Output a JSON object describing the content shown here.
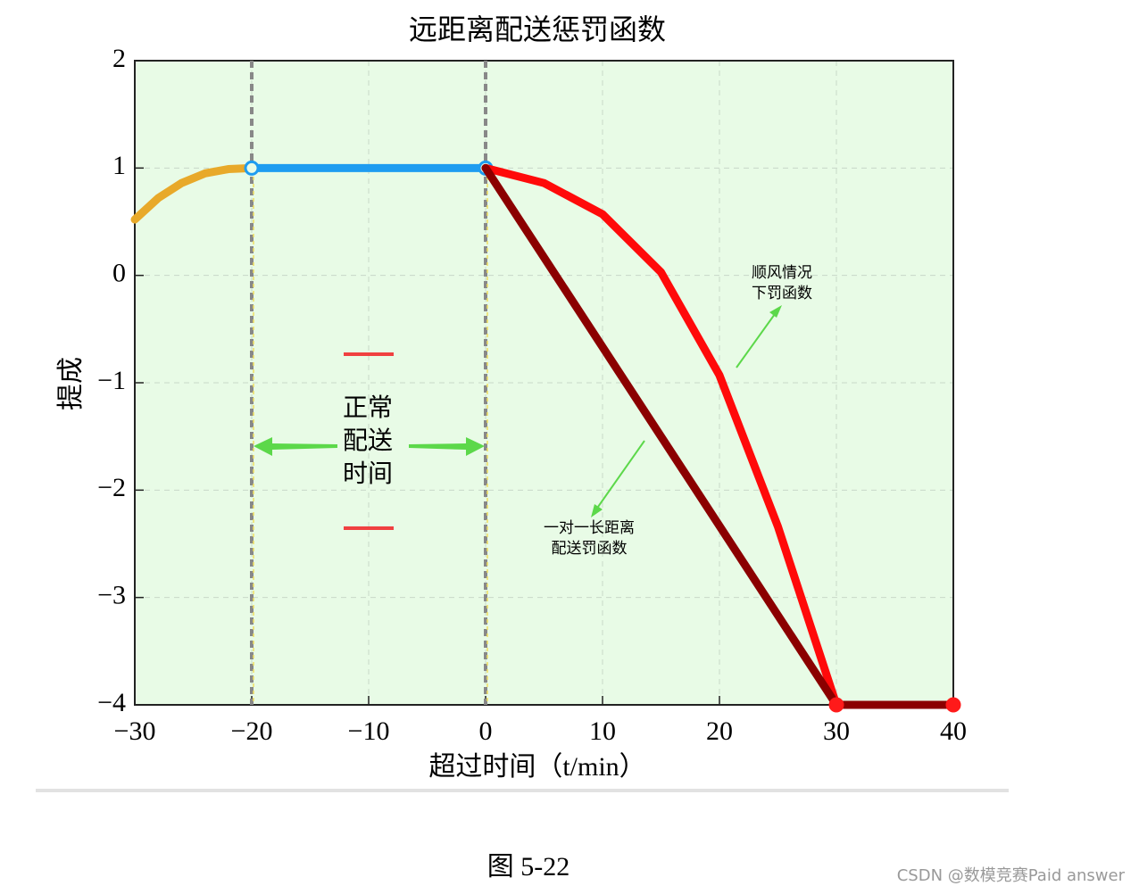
{
  "chart_data": {
    "type": "line",
    "title": "远距离配送惩罚函数",
    "xlabel": "超过时间（t/min）",
    "ylabel": "提成",
    "xlim": [
      -30,
      40
    ],
    "ylim": [
      -4,
      2
    ],
    "xticks": [
      {
        "value": -30,
        "label": "−30"
      },
      {
        "value": -20,
        "label": "−20"
      },
      {
        "value": -10,
        "label": "−10"
      },
      0,
      10,
      20,
      30,
      40
    ],
    "yticks": [
      2,
      1,
      0,
      {
        "value": -1,
        "label": "−1"
      },
      {
        "value": -2,
        "label": "−2"
      },
      {
        "value": -3,
        "label": "−3"
      },
      {
        "value": -4,
        "label": "−4"
      }
    ],
    "grid": true,
    "vlines": [
      -20,
      0
    ],
    "series": [
      {
        "color": "#e8a92a",
        "x": [
          -30,
          -28,
          -26,
          -24,
          -22,
          -20
        ],
        "values": [
          0.52,
          0.72,
          0.86,
          0.95,
          0.99,
          1
        ]
      },
      {
        "color": "#1e9cf0",
        "x": [
          -20,
          0
        ],
        "values": [
          1,
          1
        ],
        "markers": true
      },
      {
        "color": "#ff0a0a",
        "x": [
          0,
          5,
          10,
          15,
          20,
          25,
          30
        ],
        "values": [
          1,
          0.86,
          0.57,
          0.03,
          -0.93,
          -2.34,
          -4
        ]
      },
      {
        "color": "#8b0000",
        "x": [
          0,
          30
        ],
        "values": [
          1,
          -4
        ]
      },
      {
        "color": "#8b0000",
        "x": [
          30,
          40
        ],
        "values": [
          -4,
          -4
        ],
        "markers": true,
        "marker_color": "#ff1a1a"
      }
    ],
    "annotations": [
      {
        "lines": [
          "正常",
          "配送",
          "时间"
        ]
      },
      {
        "lines": [
          "顺风情况",
          "下罚函数"
        ]
      },
      {
        "lines": [
          "一对一长距离",
          "配送罚函数"
        ]
      }
    ],
    "caption": "图 5-22",
    "watermark": "CSDN @数模竞赛Paid answer"
  }
}
